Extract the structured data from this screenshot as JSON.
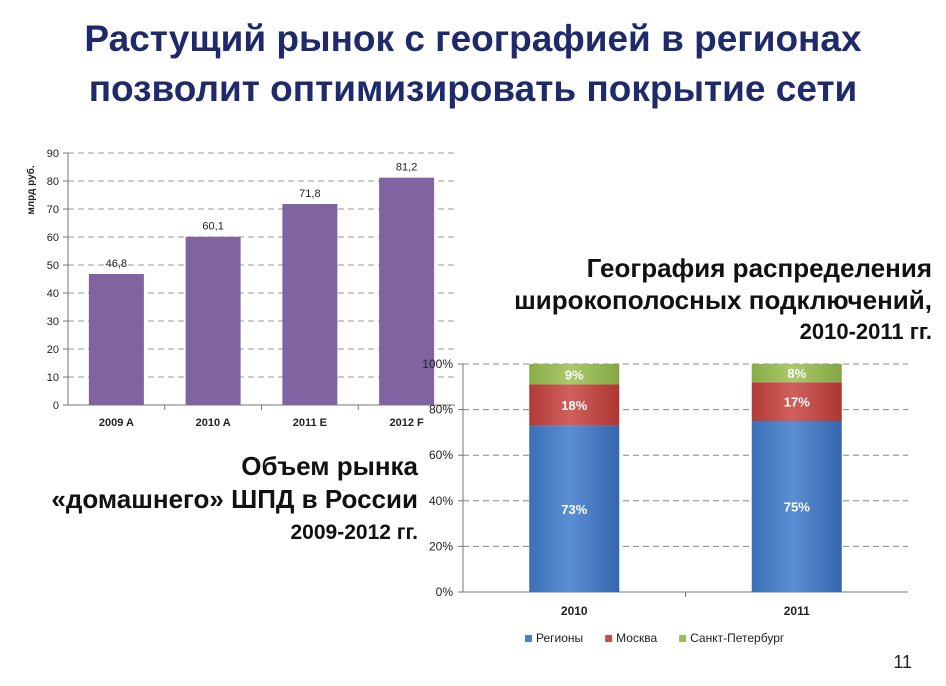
{
  "title": {
    "line1": "Растущий рынок с географией в регионах",
    "line2": "позволит оптимизировать  покрытие сети"
  },
  "caption_left": {
    "line1": "Объем рынка",
    "line2": "«домашнего» ШПД в России",
    "line3": "2009-2012 гг."
  },
  "caption_right": {
    "line1": "География распределения",
    "line2": "широкополосных подключений,",
    "line3": "2010-2011 гг."
  },
  "page_number": "11",
  "chart_data": [
    {
      "type": "bar",
      "ylabel": "млрд руб.",
      "categories": [
        "2009 A",
        "2010 A",
        "2011 E",
        "2012 F"
      ],
      "values": [
        46.8,
        60.1,
        71.8,
        81.2
      ],
      "data_labels": [
        "46,8",
        "60,1",
        "71,8",
        "81,2"
      ],
      "ylim": [
        0,
        90
      ],
      "yticks": [
        0,
        10,
        20,
        30,
        40,
        50,
        60,
        70,
        80,
        90
      ],
      "grid": true,
      "bar_color": "#8064a2"
    },
    {
      "type": "bar",
      "stacked": true,
      "categories": [
        "2010",
        "2011"
      ],
      "series": [
        {
          "name": "Регионы",
          "values": [
            73,
            75
          ],
          "labels": [
            "73%",
            "75%"
          ],
          "color": "#4f81bd"
        },
        {
          "name": "Москва",
          "values": [
            18,
            17
          ],
          "labels": [
            "18%",
            "17%"
          ],
          "color": "#c0504d"
        },
        {
          "name": "Санкт-Петербург",
          "values": [
            9,
            8
          ],
          "labels": [
            "9%",
            "8%"
          ],
          "color": "#9bbb59"
        }
      ],
      "ylim": [
        0,
        100
      ],
      "yticks": [
        "0%",
        "20%",
        "40%",
        "60%",
        "80%",
        "100%"
      ],
      "grid": true,
      "legend": "bottom"
    }
  ]
}
